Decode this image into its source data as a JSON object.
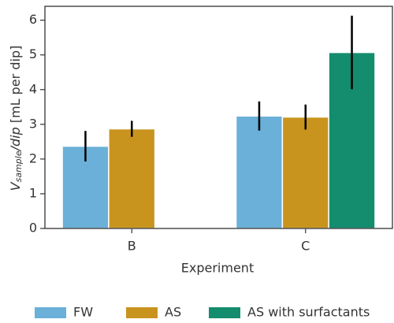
{
  "chart_data": {
    "type": "bar",
    "ylabel": {
      "symbol": "V",
      "subscript": "sample",
      "rest": "/dip",
      "unit": " [mL per dip]"
    },
    "xlabel": "Experiment",
    "categories": [
      "B",
      "C"
    ],
    "series": [
      {
        "name": "FW",
        "color": "#6ab0d8",
        "values": [
          2.37,
          3.24
        ],
        "errors": [
          0.44,
          0.42
        ]
      },
      {
        "name": "AS",
        "color": "#c9941e",
        "values": [
          2.87,
          3.21
        ],
        "errors": [
          0.23,
          0.36
        ]
      },
      {
        "name": "AS with surfactants",
        "color": "#138d6e",
        "values": [
          null,
          5.07
        ],
        "errors": [
          null,
          1.06
        ]
      }
    ],
    "ylim": [
      0,
      6.4
    ],
    "yticks": [
      0,
      1,
      2,
      3,
      4,
      5,
      6
    ],
    "legend": "bottom"
  }
}
